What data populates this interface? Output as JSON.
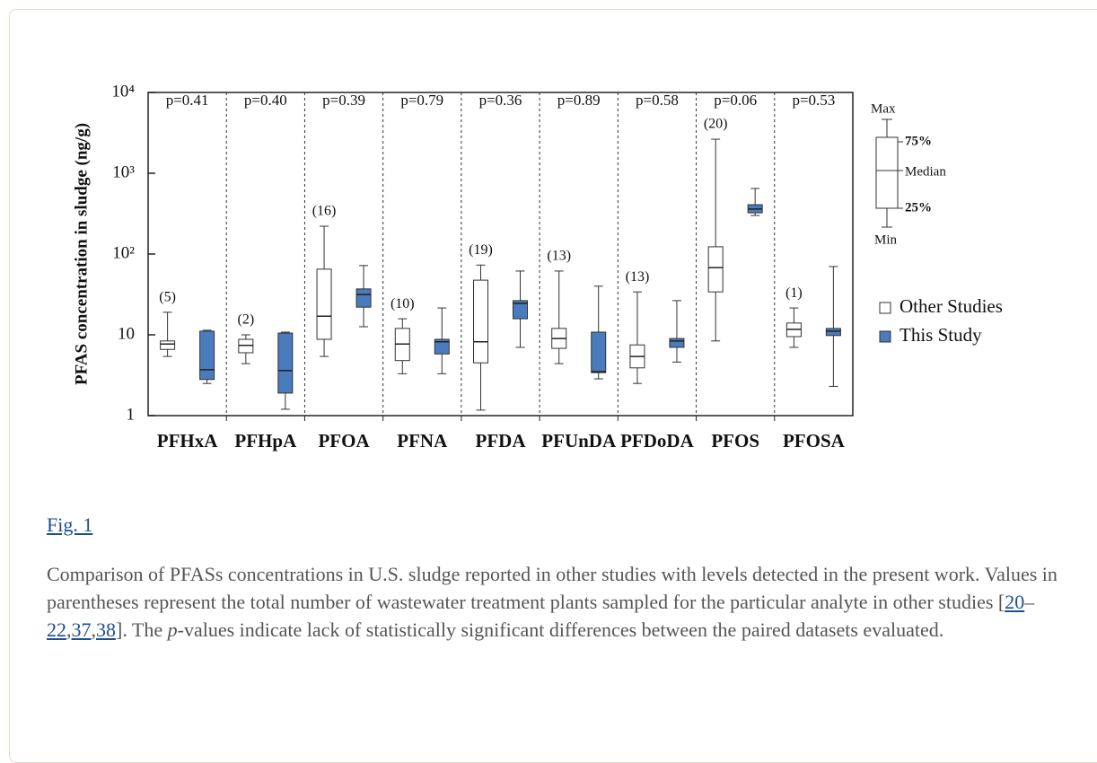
{
  "chart_data": {
    "type": "box",
    "y_label": "PFAS concentration in sludge (ng/g)",
    "categories": [
      "PFHxA",
      "PFHpA",
      "PFOA",
      "PFNA",
      "PFDA",
      "PFUnDA",
      "PFDoDA",
      "PFOS",
      "PFOSA"
    ],
    "p_values": [
      "p=0.41",
      "p=0.40",
      "p=0.39",
      "p=0.79",
      "p=0.36",
      "p=0.89",
      "p=0.58",
      "p=0.06",
      "p=0.53"
    ],
    "n_labels": [
      "(5)",
      "(2)",
      "(16)",
      "(10)",
      "(19)",
      "(13)",
      "(13)",
      "(20)",
      "(1)"
    ],
    "series": [
      {
        "name": "Other Studies",
        "color": "#ffffff",
        "values": [
          [
            5.4,
            6.6,
            7.7,
            8.4,
            19
          ],
          [
            4.4,
            6.0,
            7.4,
            8.8,
            10
          ],
          [
            5.4,
            8.8,
            17,
            65,
            221
          ],
          [
            3.3,
            4.8,
            7.7,
            12,
            15.8
          ],
          [
            1.17,
            4.5,
            8.2,
            47.5,
            73
          ],
          [
            4.4,
            6.8,
            9.0,
            12,
            61.6
          ],
          [
            2.5,
            3.9,
            5.4,
            7.5,
            34
          ],
          [
            8.4,
            34,
            68,
            123,
            2640
          ],
          [
            7.0,
            9.5,
            11.7,
            14,
            21.5
          ]
        ]
      },
      {
        "name": "This Study",
        "color": "#4a7bbd",
        "values": [
          [
            2.5,
            2.8,
            3.7,
            11.1,
            11.4
          ],
          [
            1.2,
            1.9,
            3.6,
            10.5,
            10.8
          ],
          [
            12.6,
            22,
            31.5,
            37,
            72
          ],
          [
            3.3,
            5.8,
            8.2,
            8.8,
            21.5
          ],
          [
            7.0,
            15.8,
            24.5,
            26.5,
            61.6
          ],
          [
            2.85,
            3.4,
            3.5,
            10.8,
            40
          ],
          [
            4.6,
            7.0,
            8.4,
            9.0,
            26.5
          ],
          [
            300,
            324,
            360,
            408,
            648
          ],
          [
            2.3,
            9.8,
            11.1,
            12,
            70
          ]
        ]
      }
    ],
    "log_y": true,
    "ylim": [
      1,
      10000
    ],
    "yticks": [
      1,
      10,
      {
        "value": 100,
        "label": "10²"
      },
      {
        "value": 1000,
        "label": "10³"
      },
      {
        "value": 10000,
        "label": "10⁴"
      }
    ],
    "legend_key": {
      "max": "Max",
      "q3": "75%",
      "median": "Median",
      "q1": "25%",
      "min": "Min"
    }
  },
  "figure": {
    "link": "Fig. 1",
    "caption": [
      "Comparison of PFASs concentrations in U.S. sludge reported in other studies with levels detected in the present work. Values in parentheses represent the total number of wastewater treatment plants sampled for the particular analyte in other studies [",
      "20",
      "–",
      "22",
      ",",
      "37",
      ",",
      "38",
      "]. The ",
      "p",
      "-values indicate lack of statistically significant differences between the paired datasets evaluated."
    ]
  }
}
